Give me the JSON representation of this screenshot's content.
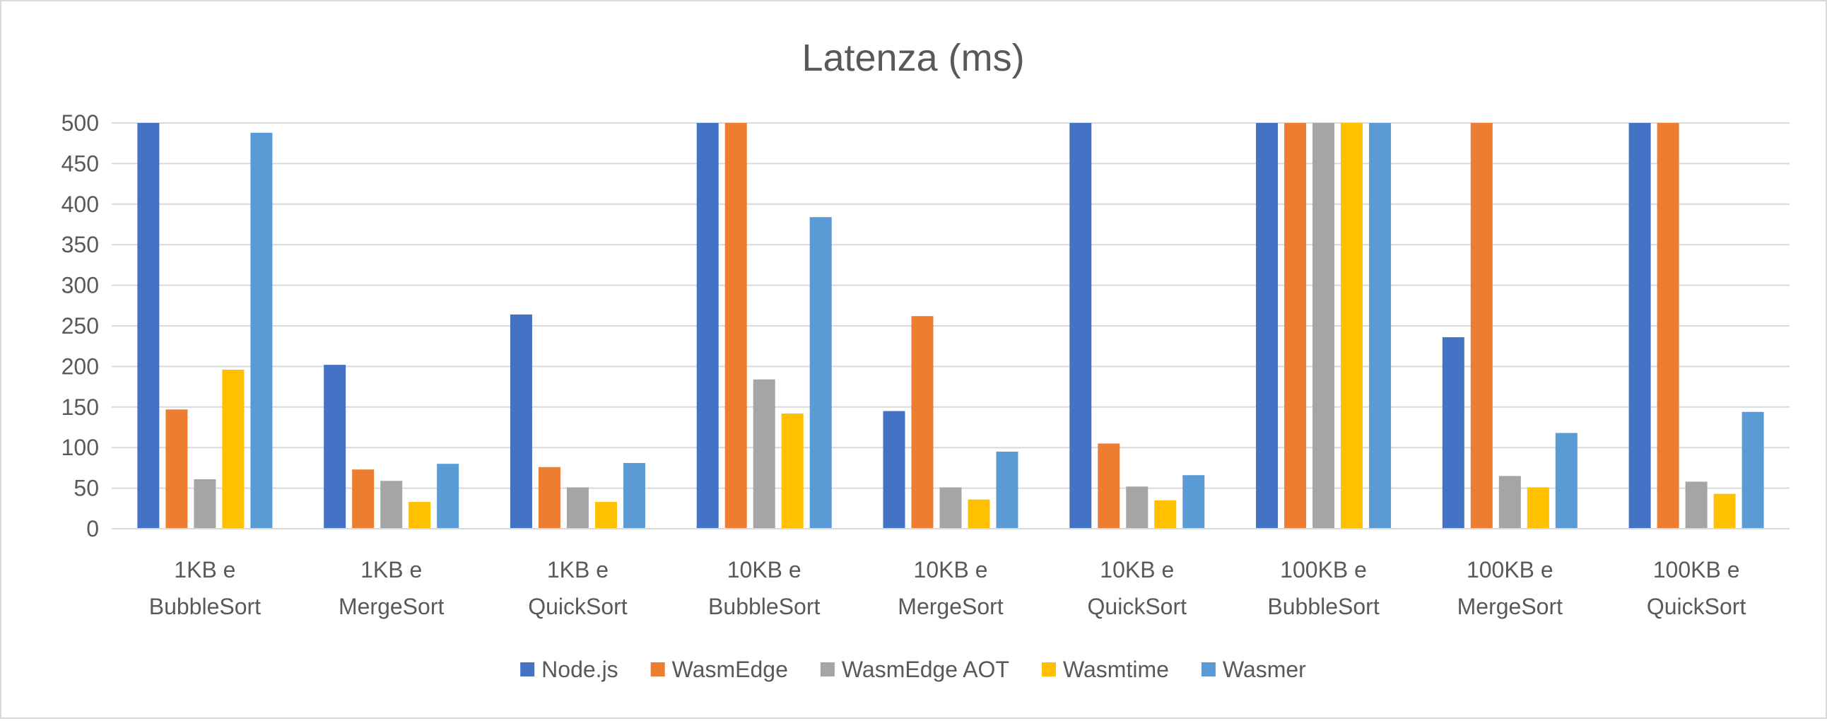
{
  "chart_data": {
    "type": "bar",
    "title": "Latenza (ms)",
    "xlabel": "",
    "ylabel": "",
    "ylim": [
      0,
      500
    ],
    "yticks": [
      0,
      50,
      100,
      150,
      200,
      250,
      300,
      350,
      400,
      450,
      500
    ],
    "grid": true,
    "legend_position": "bottom",
    "categories": [
      [
        "1KB e",
        "BubbleSort"
      ],
      [
        "1KB e",
        "MergeSort"
      ],
      [
        "1KB e",
        "QuickSort"
      ],
      [
        "10KB e",
        "BubbleSort"
      ],
      [
        "10KB e",
        "MergeSort"
      ],
      [
        "10KB e",
        "QuickSort"
      ],
      [
        "100KB e",
        "BubbleSort"
      ],
      [
        "100KB e",
        "MergeSort"
      ],
      [
        "100KB e",
        "QuickSort"
      ]
    ],
    "series": [
      {
        "name": "Node.js",
        "color": "#4472c4",
        "values": [
          500,
          202,
          264,
          500,
          145,
          500,
          500,
          236,
          500
        ]
      },
      {
        "name": "WasmEdge",
        "color": "#ed7d31",
        "values": [
          147,
          73,
          76,
          500,
          262,
          105,
          500,
          500,
          500
        ]
      },
      {
        "name": "WasmEdge AOT",
        "color": "#a5a5a5",
        "values": [
          61,
          59,
          51,
          184,
          51,
          52,
          500,
          65,
          58
        ]
      },
      {
        "name": "Wasmtime",
        "color": "#ffc000",
        "values": [
          196,
          33,
          33,
          142,
          36,
          35,
          500,
          51,
          43
        ]
      },
      {
        "name": "Wasmer",
        "color": "#5b9bd5",
        "values": [
          488,
          80,
          81,
          384,
          95,
          66,
          500,
          118,
          144
        ]
      }
    ]
  }
}
